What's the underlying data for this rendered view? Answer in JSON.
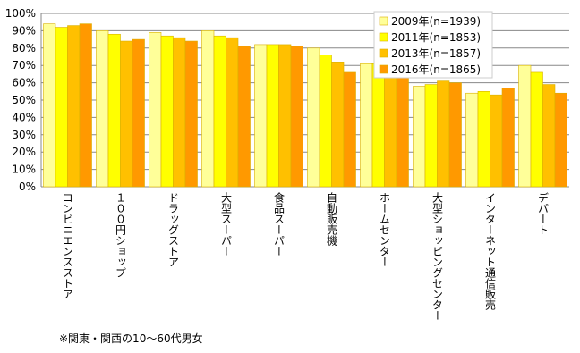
{
  "chart_data": {
    "type": "bar",
    "categories": [
      "コンビニエンスストア",
      "１００円ショップ",
      "ドラッグストア",
      "大型スーパー",
      "食品スーパー",
      "自動販売機",
      "ホームセンター",
      "大型ショッピングセンター",
      "インターネット通信販売",
      "デパート"
    ],
    "series": [
      {
        "name": "2009年(n=1939)",
        "color": "#ffff99",
        "values": [
          94,
          90,
          89,
          90,
          82,
          80,
          71,
          58,
          54,
          70
        ]
      },
      {
        "name": "2011年(n=1853)",
        "color": "#ffff00",
        "values": [
          92,
          88,
          87,
          87,
          82,
          76,
          71,
          59,
          55,
          66
        ]
      },
      {
        "name": "2013年(n=1857)",
        "color": "#ffc000",
        "values": [
          93,
          84,
          86,
          86,
          82,
          72,
          66,
          61,
          53,
          59
        ]
      },
      {
        "name": "2016年(n=1865)",
        "color": "#ff9900",
        "values": [
          94,
          85,
          84,
          81,
          81,
          66,
          63,
          60,
          57,
          54
        ]
      }
    ],
    "ylim": [
      0,
      100
    ],
    "yticks": [
      {
        "value": 0,
        "label": "0%"
      },
      {
        "value": 10,
        "label": "10%"
      },
      {
        "value": 20,
        "label": "20%"
      },
      {
        "value": 30,
        "label": "30%"
      },
      {
        "value": 40,
        "label": "40%"
      },
      {
        "value": 50,
        "label": "50%"
      },
      {
        "value": 60,
        "label": "60%"
      },
      {
        "value": 70,
        "label": "70%"
      },
      {
        "value": 80,
        "label": "80%"
      },
      {
        "value": 90,
        "label": "90%"
      },
      {
        "value": 100,
        "label": "100%"
      }
    ],
    "grid": true,
    "legend": "top-right",
    "note": "※関東・関西の10～60代男女"
  }
}
